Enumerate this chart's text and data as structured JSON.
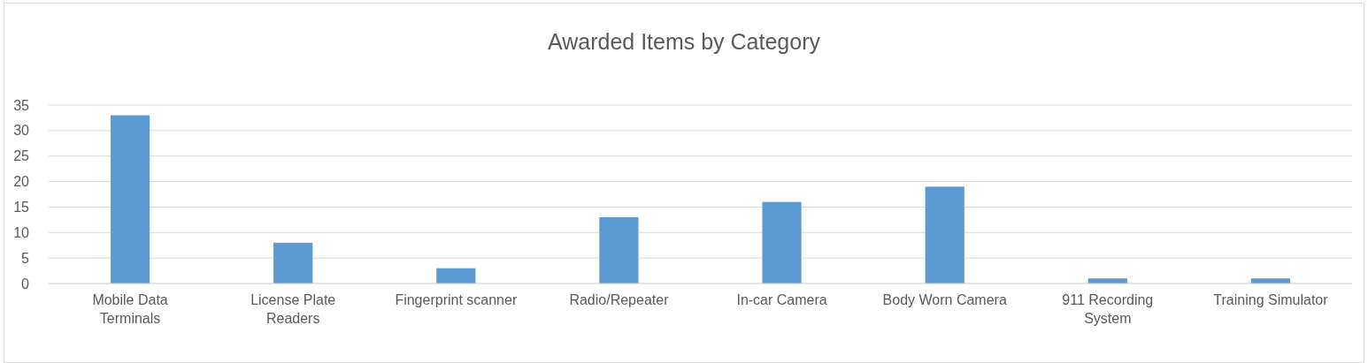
{
  "chart_data": {
    "type": "bar",
    "title": "Awarded Items by Category",
    "categories": [
      "Mobile Data Terminals",
      "License Plate Readers",
      "Fingerprint scanner",
      "Radio/Repeater",
      "In-car Camera",
      "Body Worn Camera",
      "911 Recording System",
      "Training Simulator"
    ],
    "values": [
      33,
      8,
      3,
      13,
      16,
      19,
      1,
      1
    ],
    "color": "#5b9bd5",
    "ylim": [
      0,
      35
    ],
    "yticks": [
      0,
      5,
      10,
      15,
      20,
      25,
      30,
      35
    ],
    "grid": "y"
  }
}
